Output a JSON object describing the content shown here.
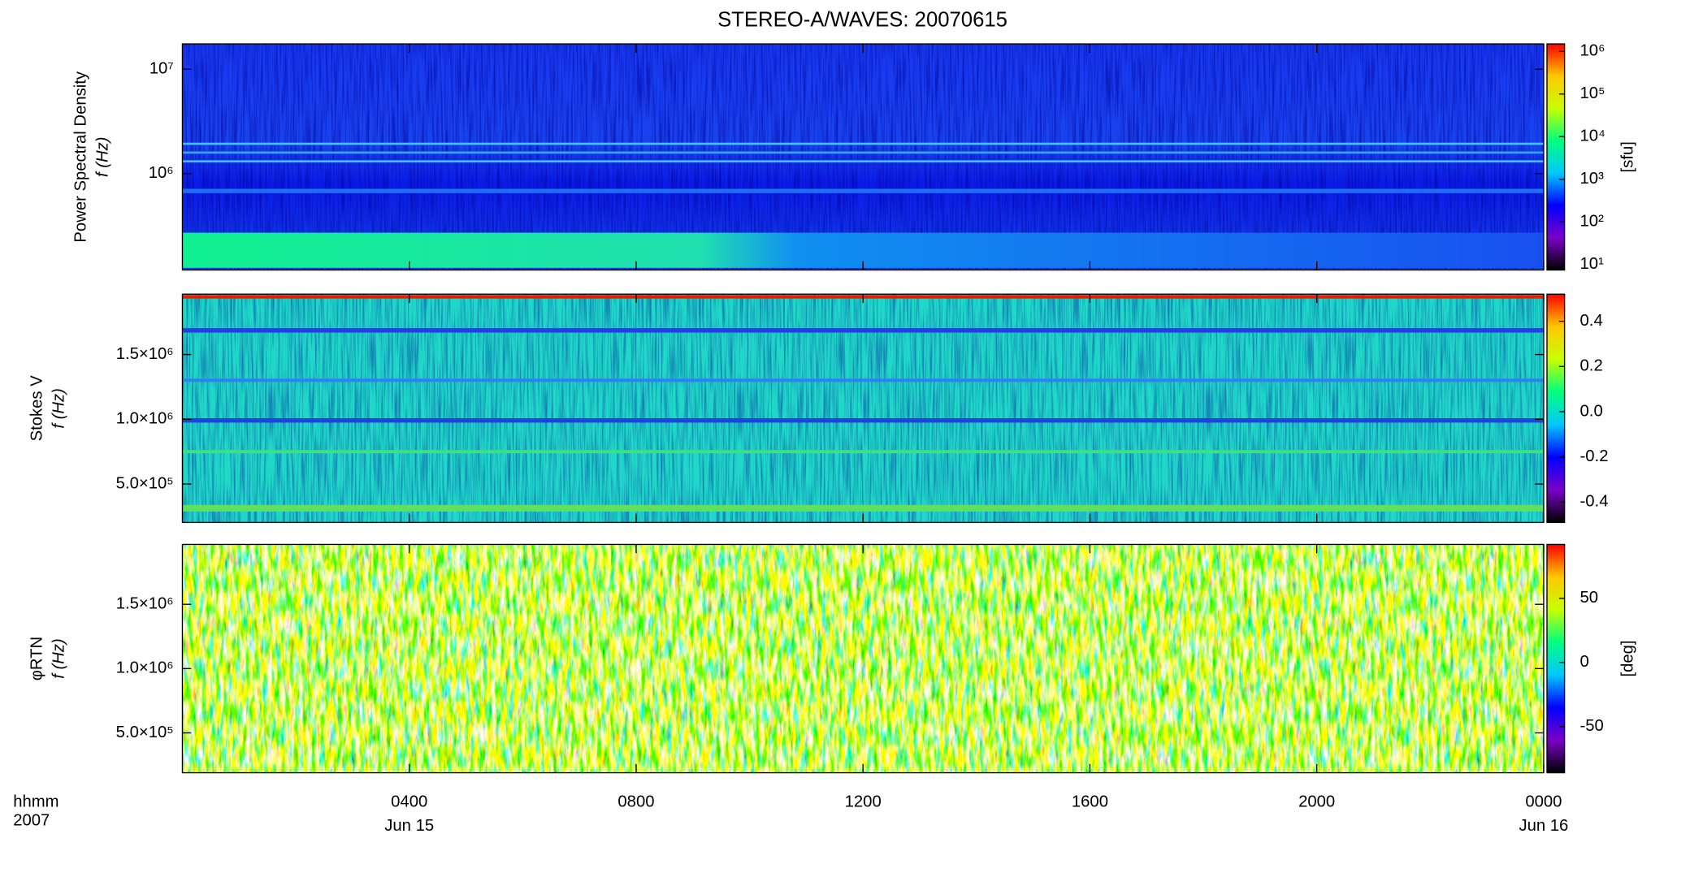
{
  "chart_data": [
    {
      "type": "heatmap",
      "title": "STEREO-A/WAVES: 20070615",
      "ylabel": [
        "Power Spectral Density",
        "f (Hz)"
      ],
      "ylog": true,
      "ylim": [
        119000,
        17500000
      ],
      "yticks": [
        {
          "value": 1000000,
          "label": "10⁶"
        },
        {
          "value": 10000000,
          "label": "10⁷"
        }
      ],
      "clog": true,
      "clim": [
        7.4,
        1500000
      ],
      "cticks": [
        {
          "value": 10,
          "label": "10¹"
        },
        {
          "value": 100,
          "label": "10²"
        },
        {
          "value": 1000,
          "label": "10³"
        },
        {
          "value": 10000,
          "label": "10⁴"
        },
        {
          "value": 100000,
          "label": "10⁵"
        },
        {
          "value": 1000000,
          "label": "10⁶"
        }
      ],
      "clabel": "[sfu]",
      "colormap": [
        "#000000",
        "#7a00c8",
        "#0000ff",
        "#00c8ff",
        "#00ff80",
        "#c8ff00",
        "#ffc800",
        "#ff0000"
      ]
    },
    {
      "type": "heatmap",
      "ylabel": [
        "Stokes V",
        "f (Hz)"
      ],
      "ylog": false,
      "ylim": [
        203000,
        1966000
      ],
      "yticks": [
        {
          "value": 500000,
          "label": "5.0×10⁵"
        },
        {
          "value": 1000000,
          "label": "1.0×10⁶"
        },
        {
          "value": 1500000,
          "label": "1.5×10⁶"
        }
      ],
      "clog": false,
      "clim": [
        -0.49,
        0.52
      ],
      "cticks": [
        -0.4,
        -0.2,
        {
          "value": 0,
          "label": "0.0"
        },
        0.2,
        0.4
      ],
      "colormap": [
        "#000000",
        "#7a00c8",
        "#0000ff",
        "#00c8ff",
        "#00ff80",
        "#c8ff00",
        "#ffc800",
        "#ff0000"
      ]
    },
    {
      "type": "heatmap",
      "ylabel": [
        "φRTN",
        "f (Hz)"
      ],
      "ylog": false,
      "ylim": [
        190000,
        1966000
      ],
      "yticks": [
        {
          "value": 500000,
          "label": "5.0×10⁵"
        },
        {
          "value": 1000000,
          "label": "1.0×10⁶"
        },
        {
          "value": 1500000,
          "label": "1.5×10⁶"
        }
      ],
      "clog": false,
      "clim": [
        -86,
        92
      ],
      "cticks": [
        -50,
        0,
        50
      ],
      "clabel": "[deg]",
      "colormap": [
        "#000000",
        "#7a00c8",
        "#0000ff",
        "#00c8ff",
        "#00ff80",
        "#c8ff00",
        "#ffc800",
        "#ff0000"
      ],
      "xlim": [
        0,
        24
      ],
      "xticks": [
        {
          "value": 4,
          "label": "0400"
        },
        {
          "value": 8,
          "label": "0800"
        },
        {
          "value": 12,
          "label": "1200"
        },
        {
          "value": 16,
          "label": "1600"
        },
        {
          "value": 20,
          "label": "2000"
        },
        {
          "value": 24,
          "label": "0000"
        }
      ],
      "x_dates": [
        {
          "value": 4,
          "label": "Jun 15"
        },
        {
          "value": 24,
          "label": "Jun 16"
        }
      ],
      "x_unit": "hhmm",
      "x_year": "2007"
    }
  ]
}
